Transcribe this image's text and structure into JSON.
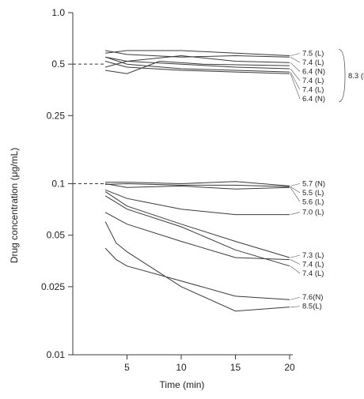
{
  "chart_data": {
    "type": "line",
    "title": "",
    "xlabel": "Time (min)",
    "ylabel": "Drug concentration (μg/mL)",
    "x_scale": "linear",
    "y_scale": "log",
    "xlim": [
      0,
      20
    ],
    "ylim": [
      0.01,
      1.0
    ],
    "x_ticks": [
      5,
      10,
      15,
      20
    ],
    "x_tick_labels": [
      "5",
      "10",
      "15",
      "20"
    ],
    "y_ticks": [
      0.01,
      0.025,
      0.05,
      0.1,
      0.25,
      0.5,
      1.0
    ],
    "y_tick_labels": [
      "0.01",
      "0.025",
      "0.05",
      "0.1",
      "0.25",
      "0.5",
      "1.0"
    ],
    "reference_levels": [
      0.5,
      0.1
    ],
    "grid": false,
    "line_color": "#3a3a3a",
    "group_brackets": [
      {
        "label": "8.3 (N)",
        "members": [
          0,
          1,
          2,
          3,
          4,
          5,
          6
        ]
      },
      {
        "label": "",
        "members": [
          7,
          8,
          9
        ]
      }
    ],
    "series": [
      {
        "name": "7.5 (L)",
        "x": [
          3,
          5,
          10,
          15,
          20
        ],
        "y": [
          0.58,
          0.6,
          0.6,
          0.58,
          0.56
        ]
      },
      {
        "name": "7.4 (L)",
        "x": [
          3,
          5,
          10,
          15,
          20
        ],
        "y": [
          0.6,
          0.57,
          0.55,
          0.56,
          0.55
        ]
      },
      {
        "name": "6.4 (N)",
        "x": [
          3,
          5,
          10,
          15,
          20
        ],
        "y": [
          0.55,
          0.52,
          0.56,
          0.52,
          0.51
        ]
      },
      {
        "name": "7.4 (L)",
        "x": [
          3,
          5,
          10,
          15,
          20
        ],
        "y": [
          0.48,
          0.52,
          0.5,
          0.48,
          0.47
        ]
      },
      {
        "name": "6.4 (N)",
        "x": [
          3,
          5,
          10,
          15,
          20
        ],
        "y": [
          0.52,
          0.48,
          0.46,
          0.45,
          0.44
        ]
      },
      {
        "name": "7.4 (L)",
        "x": [
          3,
          5,
          10,
          15,
          20
        ],
        "y": [
          0.55,
          0.5,
          0.47,
          0.46,
          0.45
        ]
      },
      {
        "name": "",
        "x": [
          3,
          5,
          8,
          12,
          20
        ],
        "y": [
          0.46,
          0.44,
          0.52,
          0.5,
          0.49
        ]
      },
      {
        "name": "5.7 (N)",
        "x": [
          3,
          5,
          10,
          15,
          20
        ],
        "y": [
          0.102,
          0.102,
          0.1,
          0.103,
          0.097
        ]
      },
      {
        "name": "5.5 (L)",
        "x": [
          3,
          5,
          10,
          15,
          20
        ],
        "y": [
          0.099,
          0.1,
          0.098,
          0.098,
          0.096
        ]
      },
      {
        "name": "5.6 (L)",
        "x": [
          3,
          5,
          10,
          15,
          20
        ],
        "y": [
          0.1,
          0.095,
          0.097,
          0.093,
          0.095
        ]
      },
      {
        "name": "7.0 (L)",
        "x": [
          3,
          5,
          10,
          15,
          20
        ],
        "y": [
          0.092,
          0.082,
          0.071,
          0.066,
          0.066
        ]
      },
      {
        "name": "7.3 (L)",
        "x": [
          3,
          5,
          10,
          15,
          20
        ],
        "y": [
          0.09,
          0.074,
          0.058,
          0.046,
          0.037
        ]
      },
      {
        "name": "7.4 (L)",
        "x": [
          3,
          5,
          10,
          15,
          20
        ],
        "y": [
          0.085,
          0.071,
          0.056,
          0.041,
          0.033
        ]
      },
      {
        "name": "7.4 (L)",
        "x": [
          3,
          5,
          10,
          15,
          20
        ],
        "y": [
          0.068,
          0.058,
          0.046,
          0.037,
          0.036
        ]
      },
      {
        "name": "8.5(L)",
        "x": [
          3,
          4,
          5,
          10,
          15,
          20
        ],
        "y": [
          0.06,
          0.045,
          0.04,
          0.025,
          0.018,
          0.019
        ]
      },
      {
        "name": "7.6(N)",
        "x": [
          3,
          4,
          5,
          10,
          15,
          20
        ],
        "y": [
          0.042,
          0.036,
          0.033,
          0.027,
          0.022,
          0.021
        ]
      }
    ]
  }
}
